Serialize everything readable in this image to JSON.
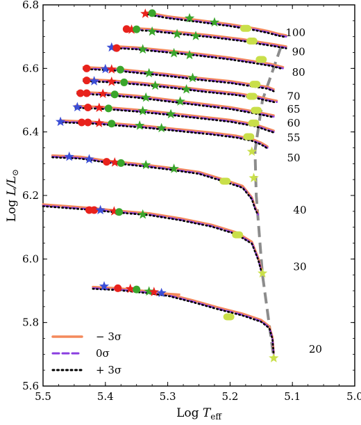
{
  "chart_data": {
    "type": "line",
    "title": "",
    "xlabel": "Log T",
    "xlabel_sub": "eff",
    "ylabel": "Log L/L",
    "ylabel_sub": "⊙",
    "xlim": [
      5.5,
      5.0
    ],
    "ylim": [
      5.6,
      6.8
    ],
    "x_ticks": [
      "5.5",
      "5.4",
      "5.3",
      "5.2",
      "5.1",
      "5.0"
    ],
    "x_tick_values": [
      5.5,
      5.4,
      5.3,
      5.2,
      5.1,
      5.0
    ],
    "y_ticks": [
      "5.6",
      "5.8",
      "6.0",
      "6.2",
      "6.4",
      "6.6",
      "6.8"
    ],
    "y_tick_values": [
      5.6,
      5.8,
      6.0,
      6.2,
      6.4,
      6.6,
      6.8
    ],
    "legend": {
      "placement": "bottom-left",
      "entries": [
        {
          "label": "− 3σ",
          "color": "#f4895b",
          "style": "solid"
        },
        {
          "label": "0σ",
          "color": "#8a3ee0",
          "style": "dashed"
        },
        {
          "label": "+ 3σ",
          "color": "#000000",
          "style": "dotted"
        }
      ]
    },
    "colors": {
      "minus3": "#f4895b",
      "zero": "#8a3ee0",
      "plus3": "#000000",
      "tams_line": "#8c8c8c",
      "marker_red": "#e8221c",
      "marker_green": "#3aa52b",
      "marker_blue": "#3b4ed6",
      "marker_yellow": "#c9df4a"
    },
    "tracks": [
      {
        "mass": "100",
        "x": [
          5.333,
          5.3,
          5.25,
          5.2,
          5.16,
          5.14,
          5.125,
          5.11
        ],
        "y": [
          6.772,
          6.76,
          6.748,
          6.735,
          6.722,
          6.714,
          6.706,
          6.7
        ],
        "markers": [
          {
            "type": "star",
            "color": "marker_red",
            "x": 5.336,
            "y": 6.772
          },
          {
            "type": "circle",
            "color": "marker_green",
            "x": 5.325,
            "y": 6.774
          },
          {
            "type": "star",
            "color": "marker_green",
            "x": 5.265,
            "y": 6.758
          },
          {
            "type": "star",
            "color": "marker_green",
            "x": 5.225,
            "y": 6.745
          },
          {
            "type": "pill",
            "color": "marker_yellow",
            "x": 5.175,
            "y": 6.726
          }
        ]
      },
      {
        "mass": "90",
        "x": [
          5.366,
          5.33,
          5.28,
          5.23,
          5.18,
          5.15,
          5.13,
          5.11
        ],
        "y": [
          6.724,
          6.72,
          6.71,
          6.7,
          6.688,
          6.678,
          6.672,
          6.665
        ],
        "markers": [
          {
            "type": "circle",
            "color": "marker_red",
            "x": 5.366,
            "y": 6.724
          },
          {
            "type": "star",
            "color": "marker_red",
            "x": 5.358,
            "y": 6.722
          },
          {
            "type": "circle",
            "color": "marker_green",
            "x": 5.35,
            "y": 6.723
          },
          {
            "type": "star",
            "color": "marker_green",
            "x": 5.325,
            "y": 6.716
          },
          {
            "type": "star",
            "color": "marker_green",
            "x": 5.285,
            "y": 6.708
          },
          {
            "type": "star",
            "color": "marker_green",
            "x": 5.255,
            "y": 6.702
          },
          {
            "type": "pill",
            "color": "marker_yellow",
            "x": 5.165,
            "y": 6.686
          }
        ]
      },
      {
        "mass": "80",
        "x": [
          5.388,
          5.35,
          5.3,
          5.25,
          5.2,
          5.16,
          5.135,
          5.115
        ],
        "y": [
          6.666,
          6.662,
          6.652,
          6.642,
          6.63,
          6.618,
          6.61,
          6.6
        ],
        "markers": [
          {
            "type": "star",
            "color": "marker_blue",
            "x": 5.39,
            "y": 6.666
          },
          {
            "type": "circle",
            "color": "marker_red",
            "x": 5.382,
            "y": 6.664
          },
          {
            "type": "star",
            "color": "marker_green",
            "x": 5.34,
            "y": 6.66
          },
          {
            "type": "star",
            "color": "marker_green",
            "x": 5.29,
            "y": 6.648
          },
          {
            "type": "star",
            "color": "marker_green",
            "x": 5.265,
            "y": 6.642
          },
          {
            "type": "pill",
            "color": "marker_yellow",
            "x": 5.15,
            "y": 6.628
          }
        ]
      },
      {
        "mass": "70",
        "x": [
          5.435,
          5.39,
          5.35,
          5.3,
          5.25,
          5.2,
          5.16,
          5.14,
          5.13
        ],
        "y": [
          6.6,
          6.596,
          6.588,
          6.578,
          6.566,
          6.556,
          6.544,
          6.538,
          6.53
        ],
        "markers": [
          {
            "type": "circle",
            "color": "marker_red",
            "x": 5.43,
            "y": 6.6
          },
          {
            "type": "star",
            "color": "marker_blue",
            "x": 5.4,
            "y": 6.598
          },
          {
            "type": "star",
            "color": "marker_red",
            "x": 5.39,
            "y": 6.597
          },
          {
            "type": "circle",
            "color": "marker_green",
            "x": 5.376,
            "y": 6.596
          },
          {
            "type": "star",
            "color": "marker_green",
            "x": 5.33,
            "y": 6.585
          },
          {
            "type": "star",
            "color": "marker_green",
            "x": 5.26,
            "y": 6.57
          },
          {
            "type": "pill",
            "color": "marker_yellow",
            "x": 5.16,
            "y": 6.55
          }
        ]
      },
      {
        "mass": "65",
        "x": [
          5.435,
          5.39,
          5.34,
          5.29,
          5.24,
          5.19,
          5.155,
          5.14,
          5.125
        ],
        "y": [
          6.562,
          6.558,
          6.55,
          6.54,
          6.528,
          6.518,
          6.507,
          6.5,
          6.494
        ],
        "markers": [
          {
            "type": "circle",
            "color": "marker_red",
            "x": 5.43,
            "y": 6.562
          },
          {
            "type": "star",
            "color": "marker_blue",
            "x": 5.418,
            "y": 6.56
          },
          {
            "type": "star",
            "color": "marker_red",
            "x": 5.39,
            "y": 6.558
          },
          {
            "type": "circle",
            "color": "marker_green",
            "x": 5.37,
            "y": 6.556
          },
          {
            "type": "star",
            "color": "marker_green",
            "x": 5.32,
            "y": 6.546
          },
          {
            "type": "star",
            "color": "marker_green",
            "x": 5.27,
            "y": 6.534
          },
          {
            "type": "pill",
            "color": "marker_yellow",
            "x": 5.165,
            "y": 6.512
          }
        ]
      },
      {
        "mass": "60",
        "x": [
          5.445,
          5.4,
          5.35,
          5.3,
          5.25,
          5.2,
          5.16,
          5.145,
          5.13
        ],
        "y": [
          6.522,
          6.518,
          6.51,
          6.498,
          6.486,
          6.474,
          6.46,
          6.454,
          6.448
        ],
        "markers": [
          {
            "type": "circle",
            "color": "marker_red",
            "x": 5.44,
            "y": 6.522
          },
          {
            "type": "circle",
            "color": "marker_red",
            "x": 5.43,
            "y": 6.522
          },
          {
            "type": "star",
            "color": "marker_red",
            "x": 5.404,
            "y": 6.52
          },
          {
            "type": "circle",
            "color": "marker_green",
            "x": 5.385,
            "y": 6.518
          },
          {
            "type": "star",
            "color": "marker_green",
            "x": 5.335,
            "y": 6.508
          },
          {
            "type": "star",
            "color": "marker_green",
            "x": 5.28,
            "y": 6.496
          },
          {
            "type": "pill",
            "color": "marker_yellow",
            "x": 5.158,
            "y": 6.468
          }
        ]
      },
      {
        "mass": "55",
        "x": [
          5.448,
          5.4,
          5.35,
          5.3,
          5.25,
          5.2,
          5.16,
          5.145,
          5.13
        ],
        "y": [
          6.478,
          6.474,
          6.466,
          6.456,
          6.445,
          6.434,
          6.42,
          6.41,
          6.4
        ],
        "markers": [
          {
            "type": "star",
            "color": "marker_blue",
            "x": 5.445,
            "y": 6.478
          },
          {
            "type": "circle",
            "color": "marker_red",
            "x": 5.428,
            "y": 6.477
          },
          {
            "type": "star",
            "color": "marker_red",
            "x": 5.41,
            "y": 6.476
          },
          {
            "type": "circle",
            "color": "marker_green",
            "x": 5.395,
            "y": 6.474
          },
          {
            "type": "star",
            "color": "marker_green",
            "x": 5.34,
            "y": 6.466
          },
          {
            "type": "star",
            "color": "marker_green",
            "x": 5.295,
            "y": 6.456
          },
          {
            "type": "pill",
            "color": "marker_yellow",
            "x": 5.162,
            "y": 6.428
          }
        ]
      },
      {
        "mass": "50",
        "x": [
          5.47,
          5.42,
          5.38,
          5.33,
          5.28,
          5.23,
          5.19,
          5.165,
          5.15,
          5.14
        ],
        "y": [
          6.432,
          6.428,
          6.422,
          6.414,
          6.404,
          6.394,
          6.384,
          6.374,
          6.362,
          6.35
        ],
        "markers": [
          {
            "type": "star",
            "color": "marker_blue",
            "x": 5.472,
            "y": 6.432
          },
          {
            "type": "circle",
            "color": "marker_red",
            "x": 5.438,
            "y": 6.43
          },
          {
            "type": "circle",
            "color": "marker_red",
            "x": 5.428,
            "y": 6.43
          },
          {
            "type": "star",
            "color": "marker_red",
            "x": 5.41,
            "y": 6.428
          },
          {
            "type": "circle",
            "color": "marker_green",
            "x": 5.39,
            "y": 6.426
          },
          {
            "type": "star",
            "color": "marker_green",
            "x": 5.345,
            "y": 6.42
          },
          {
            "type": "star",
            "color": "marker_green",
            "x": 5.31,
            "y": 6.412
          },
          {
            "type": "pill",
            "color": "marker_yellow",
            "x": 5.17,
            "y": 6.385
          }
        ]
      },
      {
        "mass": "40",
        "x": [
          5.485,
          5.44,
          5.4,
          5.35,
          5.3,
          5.25,
          5.21,
          5.18,
          5.165,
          5.16,
          5.155
        ],
        "y": [
          6.322,
          6.318,
          6.306,
          6.296,
          6.284,
          6.27,
          6.246,
          6.226,
          6.19,
          6.16,
          6.14
        ],
        "markers": [
          {
            "type": "star",
            "color": "marker_blue",
            "x": 5.458,
            "y": 6.322
          },
          {
            "type": "star",
            "color": "marker_blue",
            "x": 5.426,
            "y": 6.314
          },
          {
            "type": "circle",
            "color": "marker_red",
            "x": 5.398,
            "y": 6.306
          },
          {
            "type": "star",
            "color": "marker_red",
            "x": 5.385,
            "y": 6.304
          },
          {
            "type": "circle",
            "color": "marker_green",
            "x": 5.375,
            "y": 6.302
          },
          {
            "type": "star",
            "color": "marker_green",
            "x": 5.335,
            "y": 6.296
          },
          {
            "type": "star",
            "color": "marker_green",
            "x": 5.29,
            "y": 6.284
          },
          {
            "type": "pill",
            "color": "marker_yellow",
            "x": 5.208,
            "y": 6.245
          },
          {
            "type": "star",
            "color": "marker_yellow",
            "x": 5.165,
            "y": 6.338
          },
          {
            "type": "star",
            "color": "marker_yellow",
            "x": 5.162,
            "y": 6.255
          }
        ]
      },
      {
        "mass": "30",
        "x": [
          5.5,
          5.46,
          5.42,
          5.38,
          5.33,
          5.28,
          5.23,
          5.19,
          5.165,
          5.155,
          5.148
        ],
        "y": [
          6.168,
          6.162,
          6.156,
          6.148,
          6.14,
          6.124,
          6.104,
          6.08,
          6.05,
          6.0,
          5.95
        ],
        "markers": [
          {
            "type": "circle",
            "color": "marker_red",
            "x": 5.426,
            "y": 6.154
          },
          {
            "type": "circle",
            "color": "marker_red",
            "x": 5.418,
            "y": 6.154
          },
          {
            "type": "star",
            "color": "marker_blue",
            "x": 5.408,
            "y": 6.154
          },
          {
            "type": "star",
            "color": "marker_red",
            "x": 5.386,
            "y": 6.15
          },
          {
            "type": "circle",
            "color": "marker_green",
            "x": 5.378,
            "y": 6.148
          },
          {
            "type": "star",
            "color": "marker_green",
            "x": 5.34,
            "y": 6.14
          },
          {
            "type": "pill",
            "color": "marker_yellow",
            "x": 5.188,
            "y": 6.076
          },
          {
            "type": "star",
            "color": "marker_yellow",
            "x": 5.148,
            "y": 5.955
          }
        ]
      },
      {
        "mass": "20",
        "x": [
          5.42,
          5.38,
          5.34,
          5.3,
          5.26,
          5.22,
          5.18,
          5.15,
          5.137,
          5.132,
          5.13
        ],
        "y": [
          5.908,
          5.904,
          5.896,
          5.886,
          5.866,
          5.844,
          5.824,
          5.804,
          5.784,
          5.75,
          5.7
        ],
        "markers": [
          {
            "type": "star",
            "color": "marker_blue",
            "x": 5.402,
            "y": 5.914
          },
          {
            "type": "circle",
            "color": "marker_red",
            "x": 5.38,
            "y": 5.908
          },
          {
            "type": "star",
            "color": "marker_red",
            "x": 5.36,
            "y": 5.906
          },
          {
            "type": "circle",
            "color": "marker_green",
            "x": 5.35,
            "y": 5.904
          },
          {
            "type": "star",
            "color": "marker_green",
            "x": 5.33,
            "y": 5.898
          },
          {
            "type": "star",
            "color": "marker_red",
            "x": 5.322,
            "y": 5.896
          },
          {
            "type": "star",
            "color": "marker_blue",
            "x": 5.31,
            "y": 5.893
          },
          {
            "type": "pill",
            "color": "marker_yellow",
            "x": 5.202,
            "y": 5.818
          },
          {
            "type": "star",
            "color": "marker_yellow",
            "x": 5.13,
            "y": 5.688
          }
        ]
      }
    ],
    "minus3_extra": [
      {
        "x": [
          5.31,
          5.28
        ],
        "y": [
          5.892,
          5.888
        ]
      }
    ],
    "tams_line": {
      "x": [
        5.118,
        5.148,
        5.16,
        5.158,
        5.148,
        5.13
      ],
      "y": [
        6.67,
        6.5,
        6.34,
        6.2,
        5.95,
        5.69
      ]
    },
    "mass_labels": [
      {
        "text": "100",
        "x": 5.095,
        "y": 6.712
      },
      {
        "text": "90",
        "x": 5.09,
        "y": 6.652
      },
      {
        "text": "80",
        "x": 5.09,
        "y": 6.588
      },
      {
        "text": "70",
        "x": 5.098,
        "y": 6.512
      },
      {
        "text": "65",
        "x": 5.098,
        "y": 6.472
      },
      {
        "text": "60",
        "x": 5.098,
        "y": 6.428
      },
      {
        "text": "55",
        "x": 5.098,
        "y": 6.382
      },
      {
        "text": "50",
        "x": 5.098,
        "y": 6.318
      },
      {
        "text": "40",
        "x": 5.088,
        "y": 6.154
      },
      {
        "text": "30",
        "x": 5.088,
        "y": 5.976
      },
      {
        "text": "20",
        "x": 5.063,
        "y": 5.716
      }
    ]
  }
}
